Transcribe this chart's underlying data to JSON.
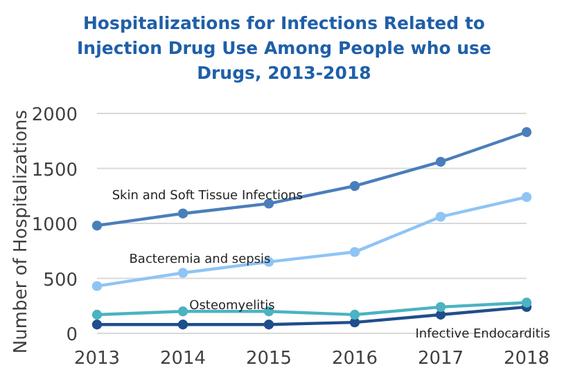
{
  "chart_data": {
    "type": "line",
    "title": "Hospitalizations for Infections Related to Injection Drug Use Among People who use Drugs, 2013-2018",
    "ylabel": "Number of Hospitalizations",
    "x": [
      2013,
      2014,
      2015,
      2016,
      2017,
      2018
    ],
    "xlim": [
      2013,
      2018
    ],
    "xticks": [
      2013,
      2014,
      2015,
      2016,
      2017,
      2018
    ],
    "ylim": [
      0,
      2000
    ],
    "yticks": [
      0,
      500,
      1000,
      1500,
      2000
    ],
    "grid": "y",
    "marker": "circle",
    "line_style": "solid",
    "series": [
      {
        "name": "Skin and Soft Tissue Infections",
        "color": "#4a7ebb",
        "values": [
          980,
          1090,
          1180,
          1340,
          1560,
          1830
        ]
      },
      {
        "name": "Bacteremia and sepsis",
        "color": "#8fc4f5",
        "values": [
          430,
          550,
          650,
          740,
          1060,
          1240
        ]
      },
      {
        "name": "Osteomyelitis",
        "color": "#4bb3c1",
        "values": [
          170,
          200,
          200,
          170,
          240,
          280
        ]
      },
      {
        "name": "Infective Endocarditis",
        "color": "#1f4e8c",
        "values": [
          80,
          80,
          80,
          100,
          170,
          240
        ]
      }
    ]
  }
}
